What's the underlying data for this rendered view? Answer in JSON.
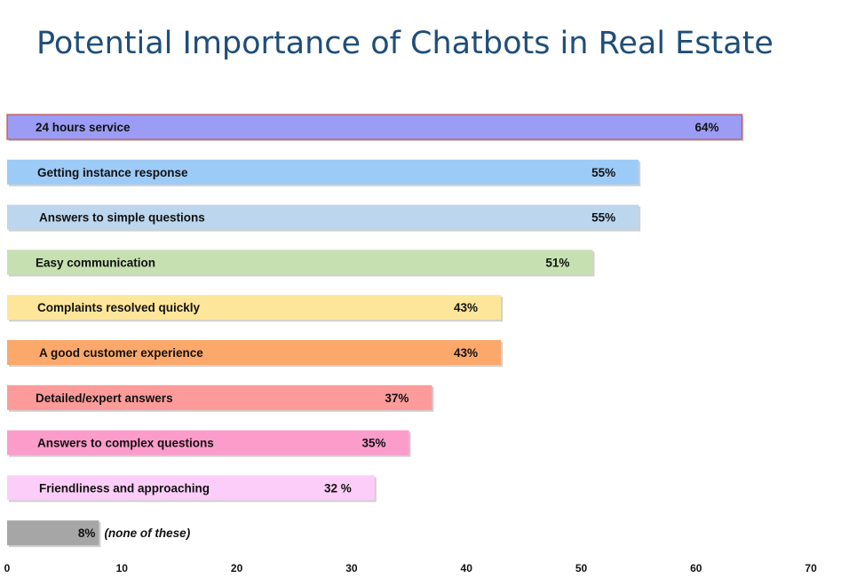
{
  "chart_data": {
    "type": "bar",
    "orientation": "horizontal",
    "title": "Potential Importance of Chatbots in Real Estate",
    "categories": [
      "24 hours service",
      "Getting instance response",
      "Answers to simple questions",
      "Easy communication",
      "Complaints resolved quickly",
      "A good customer experience",
      "Detailed/expert answers",
      "Answers to complex questions",
      "Friendliness and approaching",
      ""
    ],
    "values": [
      64,
      55,
      55,
      51,
      43,
      43,
      37,
      35,
      32,
      8
    ],
    "value_labels": [
      "64%",
      "55%",
      "55%",
      "51%",
      "43%",
      "43%",
      "37%",
      "35%",
      "32 %",
      "8%"
    ],
    "notes": [
      "",
      "",
      "",
      "",
      "",
      "",
      "",
      "",
      "",
      "(none of these)"
    ],
    "colors": [
      "#9a9cf5",
      "#9dcbf8",
      "#bcd6ee",
      "#c6e0b1",
      "#fde59a",
      "#fca86a",
      "#fc9b9a",
      "#fc9ccb",
      "#fccdf8",
      "#a6a6a6"
    ],
    "xlim": [
      0,
      70
    ],
    "xticks": [
      0,
      10,
      20,
      30,
      40,
      50,
      60,
      70
    ],
    "xtick_labels": [
      "0",
      "10",
      "20",
      "30",
      "40",
      "50",
      "60",
      "70"
    ],
    "xlabel": "",
    "ylabel": "",
    "grid": false,
    "legend": "none"
  }
}
